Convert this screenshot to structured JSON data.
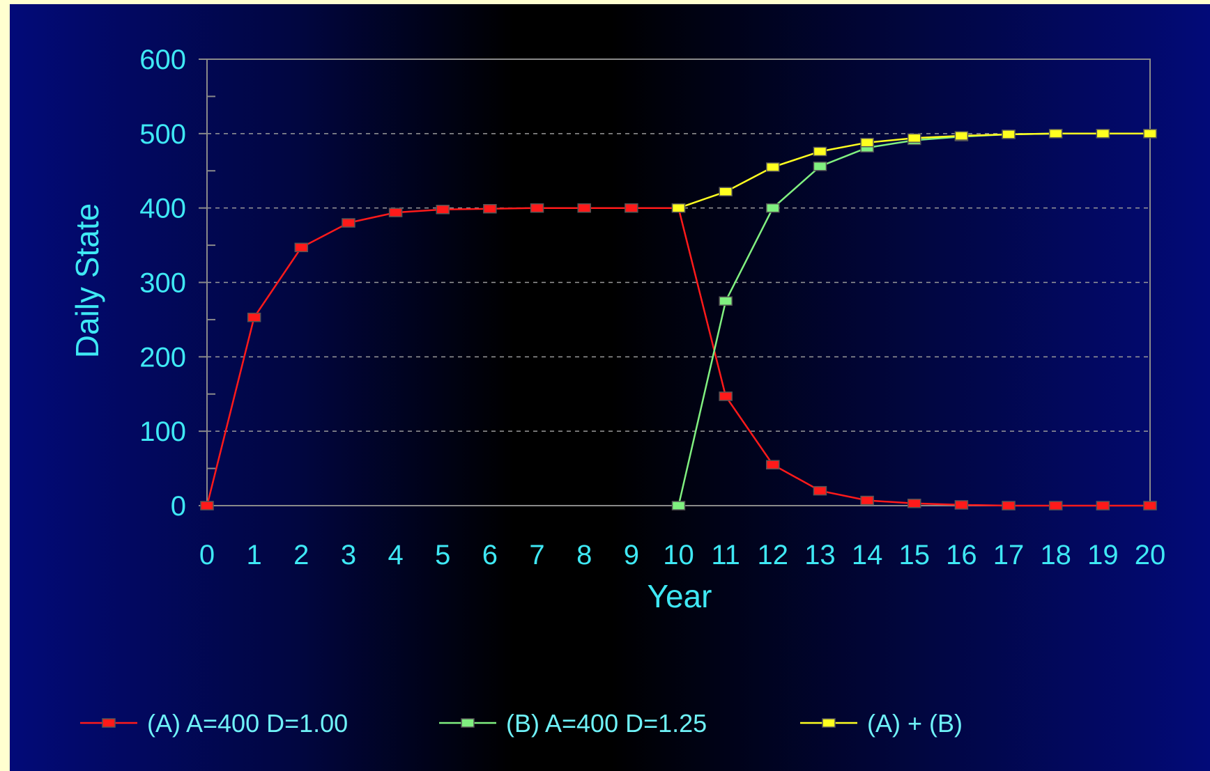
{
  "chart_data": {
    "type": "line",
    "xlabel": "Year",
    "ylabel": "Daily State",
    "xlim": [
      0,
      20
    ],
    "ylim": [
      0,
      600
    ],
    "x_ticks": [
      "0",
      "1",
      "2",
      "3",
      "4",
      "5",
      "6",
      "7",
      "8",
      "9",
      "10",
      "11",
      "12",
      "13",
      "14",
      "15",
      "16",
      "17",
      "18",
      "19",
      "20"
    ],
    "y_ticks": [
      "0",
      "100",
      "200",
      "300",
      "400",
      "500",
      "600"
    ],
    "grid": "horizontal dashed at 100-unit steps",
    "legend_position": "bottom",
    "series": [
      {
        "name": "(A)  A=400  D=1.00",
        "color": "#ff1a1a",
        "x": [
          0,
          1,
          2,
          3,
          4,
          5,
          6,
          7,
          8,
          9,
          10,
          11,
          12,
          13,
          14,
          15,
          16,
          17,
          18,
          19,
          20
        ],
        "y": [
          0,
          253,
          347,
          380,
          394,
          398,
          399,
          400,
          400,
          400,
          400,
          147,
          55,
          20,
          7,
          3,
          1,
          0,
          0,
          0,
          0
        ]
      },
      {
        "name": "(B)  A=400  D=1.25",
        "color": "#80f080",
        "x": [
          10,
          11,
          12,
          13,
          14,
          15,
          16,
          17,
          18,
          19,
          20
        ],
        "y": [
          0,
          275,
          400,
          456,
          481,
          491,
          496,
          499,
          500,
          500,
          500
        ]
      },
      {
        "name": "(A) + (B)",
        "color": "#ffff20",
        "x": [
          10,
          11,
          12,
          13,
          14,
          15,
          16,
          17,
          18,
          19,
          20
        ],
        "y": [
          400,
          422,
          455,
          476,
          488,
          494,
          497,
          499,
          500,
          500,
          500
        ]
      }
    ]
  }
}
